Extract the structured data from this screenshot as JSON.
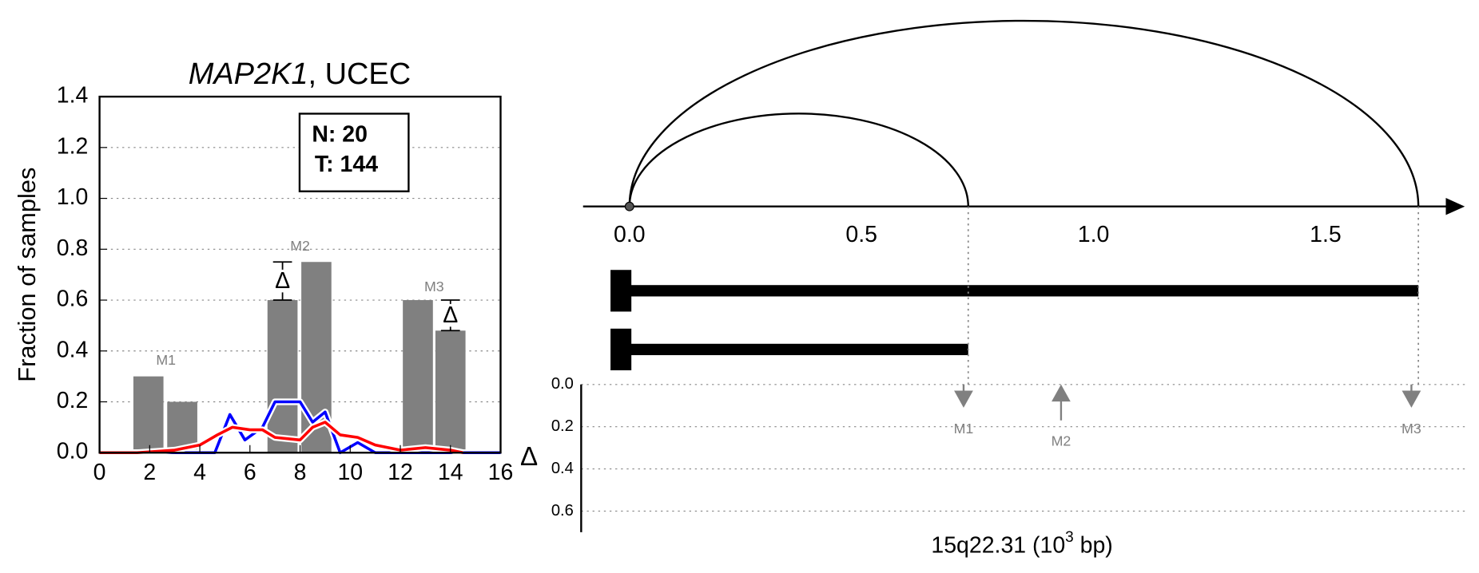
{
  "chart_data": [
    {
      "type": "bar",
      "title_gene": "MAP2K1",
      "title_rest": ", UCEC",
      "ylabel": "Fraction of samples",
      "xlim": [
        0,
        16
      ],
      "xticks": [
        0,
        2,
        4,
        6,
        8,
        10,
        12,
        14,
        16
      ],
      "ylim": [
        0,
        1.4
      ],
      "yticks": [
        {
          "value": 0,
          "label": "0.0"
        },
        {
          "value": 0.2,
          "label": "0.2"
        },
        {
          "value": 0.4,
          "label": "0.4"
        },
        {
          "value": 0.6,
          "label": "0.6"
        },
        {
          "value": 0.8,
          "label": "0.8"
        },
        {
          "value": 1.0,
          "label": "1.0"
        },
        {
          "value": 1.2,
          "label": "1.2"
        },
        {
          "value": 1.4,
          "label": "1.4"
        }
      ],
      "grid": true,
      "bar_color": "#808080",
      "bar_width": 1.2,
      "bar_x": [
        1.95,
        3.3,
        7.3,
        8.65,
        12.7,
        14.0
      ],
      "values": [
        0.3,
        0.2,
        0.6,
        0.75,
        0.6,
        0.48
      ],
      "group_labels": [
        {
          "text": "M1",
          "x": 2.65,
          "y": 0.36
        },
        {
          "text": "M2",
          "x": 8.0,
          "y": 0.81
        },
        {
          "text": "M3",
          "x": 13.35,
          "y": 0.65
        }
      ],
      "delta_symbol": "Δ",
      "delta_markers": [
        {
          "x": 7.3,
          "low": 0.6,
          "high": 0.75
        },
        {
          "x": 14.0,
          "low": 0.48,
          "high": 0.6
        }
      ],
      "counts": [
        "N: 20",
        "T: 144"
      ],
      "series": [
        {
          "color": "#0000ff",
          "x": [
            0,
            1.5,
            4.6,
            5.2,
            5.8,
            6.5,
            7.0,
            8.0,
            8.5,
            9.0,
            9.6,
            10.3,
            11.0,
            16
          ],
          "values": [
            0,
            0,
            0,
            0.15,
            0.05,
            0.1,
            0.2,
            0.2,
            0.12,
            0.16,
            0,
            0.04,
            0,
            0
          ]
        },
        {
          "color": "#ff0000",
          "x": [
            0,
            1.5,
            3.0,
            4.0,
            4.7,
            5.3,
            6.0,
            6.5,
            7.0,
            8.0,
            8.5,
            9.0,
            9.6,
            10.3,
            11.0,
            12.0,
            13.0,
            14.0,
            14.5
          ],
          "values": [
            0,
            0,
            0.01,
            0.03,
            0.07,
            0.1,
            0.09,
            0.09,
            0.06,
            0.05,
            0.1,
            0.12,
            0.07,
            0.06,
            0.03,
            0.01,
            0.02,
            0.01,
            0
          ]
        }
      ]
    },
    {
      "type": "genome",
      "xlim": [
        -0.1,
        1.8
      ],
      "xticks": [
        {
          "value": 0,
          "label": "0.0"
        },
        {
          "value": 0.5,
          "label": "0.5"
        },
        {
          "value": 1.0,
          "label": "1.0"
        },
        {
          "value": 1.5,
          "label": "1.5"
        }
      ],
      "arcs": [
        [
          0,
          0.73
        ],
        [
          0,
          1.7
        ]
      ],
      "segments": [
        [
          0,
          1.7
        ],
        [
          0,
          0.73
        ]
      ],
      "delta_label": "Δ",
      "ylim": [
        0,
        0.7
      ],
      "yticks": [
        {
          "value": 0,
          "label": "0.0"
        },
        {
          "value": 0.2,
          "label": "0.2"
        },
        {
          "value": 0.4,
          "label": "0.4"
        },
        {
          "value": 0.6,
          "label": "0.6"
        }
      ],
      "arrow_color": "#808080",
      "arrows": [
        {
          "name": "M1",
          "x": 0.72,
          "value": 0.11,
          "direction": "down"
        },
        {
          "name": "M2",
          "x": 0.93,
          "value": 0.17,
          "direction": "up"
        },
        {
          "name": "M3",
          "x": 1.685,
          "value": 0.11,
          "direction": "down"
        }
      ],
      "xlabel_parts": [
        "15q22.31 (10",
        "3",
        " bp)"
      ]
    }
  ]
}
